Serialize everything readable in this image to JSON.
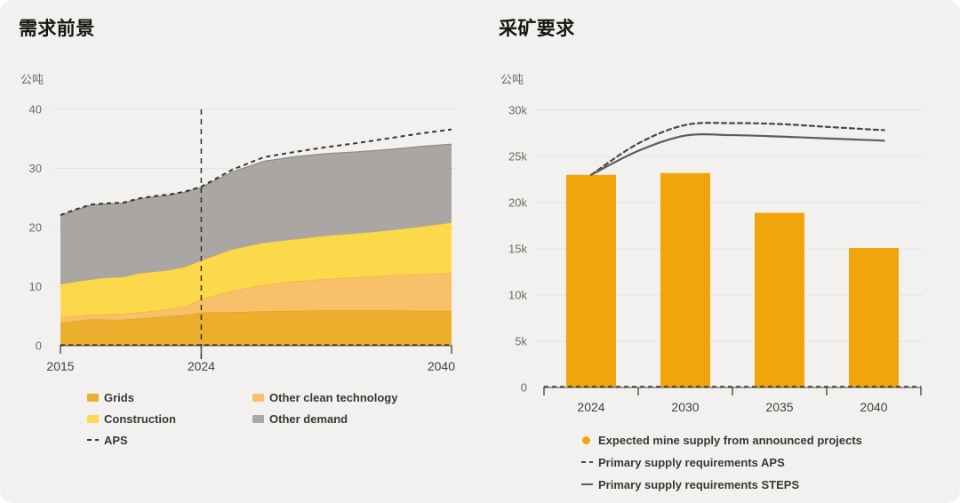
{
  "colors": {
    "card_background": "#F2F1EF",
    "grid_line": "#E6E4E0",
    "axis_line": "#6E6A64",
    "axis_dash": "#34312D"
  },
  "chart_data": [
    {
      "id": "demand-outlook",
      "type": "area",
      "title": "需求前景",
      "unit_label": "公吨",
      "x": [
        2015,
        2016,
        2017,
        2018,
        2019,
        2020,
        2021,
        2022,
        2023,
        2024,
        2026,
        2028,
        2030,
        2032,
        2034,
        2036,
        2038,
        2040
      ],
      "series": [
        {
          "name": "Grids",
          "color": "#EBAE2D",
          "edge": "#E39E14",
          "values": [
            3.9,
            4.2,
            4.5,
            4.4,
            4.4,
            4.6,
            4.8,
            5.0,
            5.2,
            5.6,
            5.7,
            5.8,
            5.9,
            6.0,
            6.0,
            6.0,
            5.9,
            5.9
          ]
        },
        {
          "name": "Other clean technology",
          "color": "#F9C06A",
          "edge": "#F3A94F",
          "values": [
            0.9,
            0.8,
            0.8,
            0.9,
            1.0,
            1.0,
            1.1,
            1.2,
            1.5,
            2.3,
            3.6,
            4.5,
            5.0,
            5.3,
            5.6,
            5.9,
            6.2,
            6.4
          ]
        },
        {
          "name": "Construction",
          "color": "#FCD94B",
          "edge": "#F5C937",
          "values": [
            5.6,
            5.8,
            5.9,
            6.2,
            6.2,
            6.6,
            6.6,
            6.6,
            6.6,
            6.5,
            7.0,
            7.1,
            7.1,
            7.3,
            7.4,
            7.6,
            8.0,
            8.5
          ]
        },
        {
          "name": "Other demand",
          "color": "#A9A6A3",
          "edge": "#8D8A87",
          "values": [
            11.6,
            12.2,
            12.6,
            12.5,
            12.5,
            12.6,
            12.7,
            12.7,
            12.7,
            12.4,
            13.1,
            13.8,
            14.0,
            13.9,
            13.8,
            13.7,
            13.6,
            13.3
          ]
        }
      ],
      "aps": {
        "name": "APS",
        "color": "#3A3733",
        "values": [
          22.1,
          23.1,
          23.9,
          24.1,
          24.2,
          24.9,
          25.3,
          25.6,
          26.1,
          26.9,
          29.8,
          31.9,
          32.8,
          33.6,
          34.3,
          35.1,
          35.9,
          36.6
        ]
      },
      "marker_year": 2024,
      "ylim": [
        0,
        40
      ],
      "yticks": [
        0,
        10,
        20,
        30,
        40
      ],
      "xticks": [
        2015,
        2024,
        2040
      ],
      "grid": true,
      "legend_position": "bottom"
    },
    {
      "id": "mining-requirements",
      "type": "bar",
      "title": "采矿要求",
      "unit_label": "公吨",
      "categories": [
        "2024",
        "2030",
        "2035",
        "2040"
      ],
      "bars": {
        "name": "Expected mine supply from announced projects",
        "color": "#F0A60A",
        "values": [
          23000,
          23200,
          18900,
          15100
        ]
      },
      "lines": [
        {
          "name": "Primary supply requirements APS",
          "color": "#4A4744",
          "dash": "5 4",
          "points": [
            [
              0,
              23000
            ],
            [
              0.5,
              26400
            ],
            [
              1,
              28400
            ],
            [
              1.5,
              28600
            ],
            [
              2,
              28500
            ],
            [
              2.5,
              28200
            ],
            [
              3,
              27900
            ],
            [
              3.11,
              27850
            ]
          ]
        },
        {
          "name": "Primary supply requirements STEPS",
          "color": "#5E5B58",
          "dash": null,
          "points": [
            [
              0,
              23000
            ],
            [
              0.5,
              25600
            ],
            [
              1,
              27250
            ],
            [
              1.5,
              27300
            ],
            [
              2,
              27150
            ],
            [
              2.5,
              26950
            ],
            [
              3,
              26750
            ],
            [
              3.11,
              26700
            ]
          ]
        }
      ],
      "ylim": [
        0,
        30000
      ],
      "yticks": [
        0,
        5000,
        10000,
        15000,
        20000,
        25000,
        30000
      ],
      "ytick_labels": [
        "0",
        "5k",
        "10k",
        "15k",
        "20k",
        "25k",
        "30k"
      ],
      "grid": true,
      "legend_position": "bottom"
    }
  ]
}
